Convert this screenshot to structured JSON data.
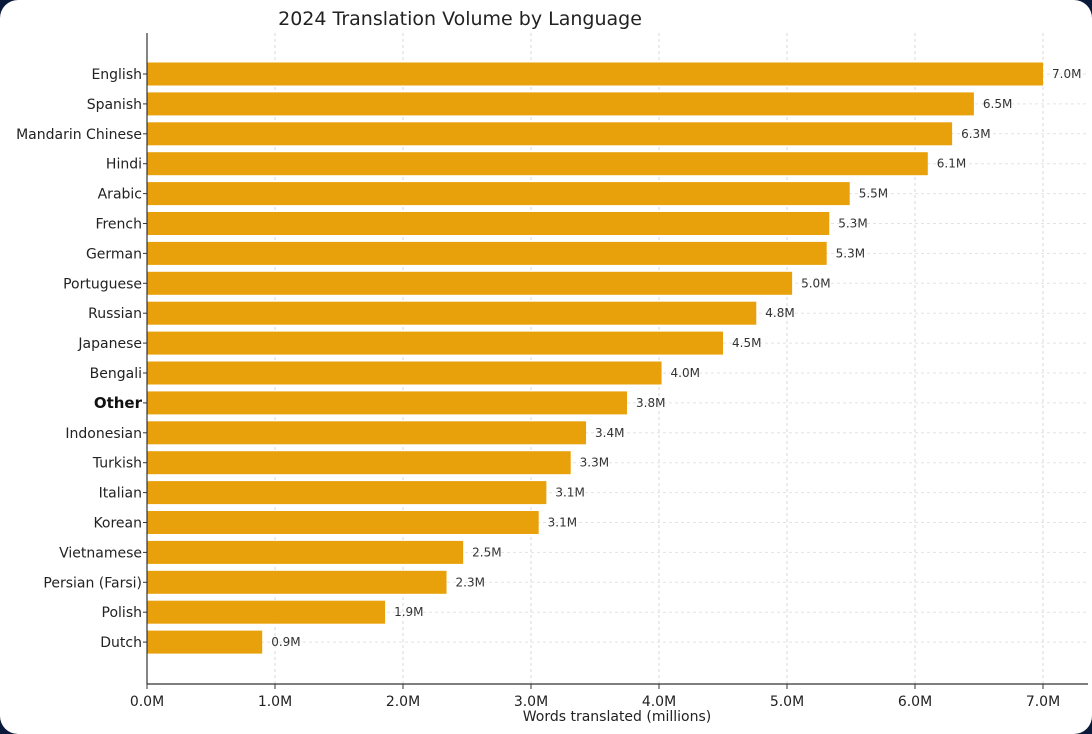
{
  "chart_data": {
    "type": "bar",
    "orientation": "horizontal",
    "title": "2024 Translation Volume by Language",
    "xlabel": "Words translated (millions)",
    "ylabel": "",
    "xlim": [
      0,
      7.35
    ],
    "x_ticks": [
      "0.0M",
      "1.0M",
      "2.0M",
      "3.0M",
      "4.0M",
      "5.0M",
      "6.0M",
      "7.0M"
    ],
    "grid": true,
    "bar_color": "#e8a10a",
    "emphasized_category": "Other",
    "categories": [
      "English",
      "Spanish",
      "Mandarin Chinese",
      "Hindi",
      "Arabic",
      "French",
      "German",
      "Portuguese",
      "Russian",
      "Japanese",
      "Bengali",
      "Other",
      "Indonesian",
      "Turkish",
      "Italian",
      "Korean",
      "Vietnamese",
      "Persian (Farsi)",
      "Polish",
      "Dutch"
    ],
    "values": [
      7.0,
      6.46,
      6.29,
      6.1,
      5.49,
      5.33,
      5.31,
      5.04,
      4.76,
      4.5,
      4.02,
      3.75,
      3.43,
      3.31,
      3.12,
      3.06,
      2.47,
      2.34,
      1.86,
      0.9
    ],
    "value_labels": [
      "7.0M",
      "6.5M",
      "6.3M",
      "6.1M",
      "5.5M",
      "5.3M",
      "5.3M",
      "5.0M",
      "4.8M",
      "4.5M",
      "4.0M",
      "3.8M",
      "3.4M",
      "3.3M",
      "3.1M",
      "3.1M",
      "2.5M",
      "2.3M",
      "1.9M",
      "0.9M"
    ]
  }
}
